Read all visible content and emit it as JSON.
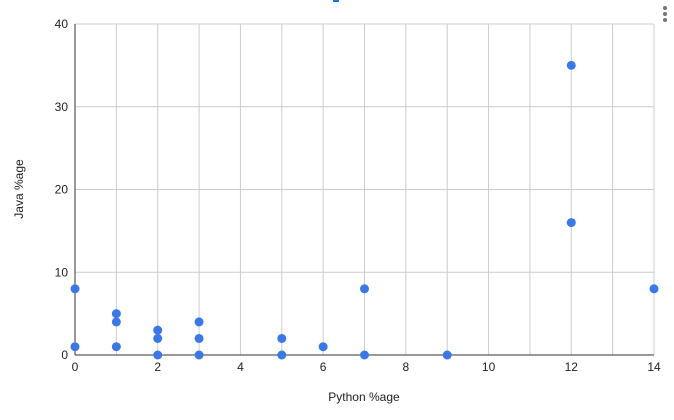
{
  "menu": {
    "icon": "more-vert-icon"
  },
  "chart_data": {
    "type": "scatter",
    "title": "",
    "xlabel": "Python %age",
    "ylabel": "Java %age",
    "xlim": [
      0,
      14
    ],
    "ylim": [
      0,
      40
    ],
    "x_ticks": [
      0,
      2,
      4,
      6,
      8,
      10,
      12,
      14
    ],
    "y_ticks": [
      0,
      10,
      20,
      30,
      40
    ],
    "x_tick_labels": [
      "0",
      "2",
      "4",
      "6",
      "8",
      "10",
      "12",
      "14"
    ],
    "y_tick_labels": [
      "0",
      "10",
      "20",
      "30",
      "40"
    ],
    "x_minor_gridlines": [
      1,
      3,
      5,
      7,
      9,
      11,
      13
    ],
    "grid": true,
    "legend": "none",
    "point_color": "#3b78e7",
    "series": [
      {
        "points": [
          {
            "x": 0,
            "y": 8
          },
          {
            "x": 0,
            "y": 1
          },
          {
            "x": 1,
            "y": 5
          },
          {
            "x": 1,
            "y": 4
          },
          {
            "x": 1,
            "y": 1
          },
          {
            "x": 2,
            "y": 3
          },
          {
            "x": 2,
            "y": 2
          },
          {
            "x": 2,
            "y": 0
          },
          {
            "x": 3,
            "y": 4
          },
          {
            "x": 3,
            "y": 2
          },
          {
            "x": 3,
            "y": 0
          },
          {
            "x": 5,
            "y": 2
          },
          {
            "x": 5,
            "y": 0
          },
          {
            "x": 6,
            "y": 1
          },
          {
            "x": 7,
            "y": 8
          },
          {
            "x": 7,
            "y": 0
          },
          {
            "x": 9,
            "y": 0
          },
          {
            "x": 12,
            "y": 35
          },
          {
            "x": 12,
            "y": 16
          },
          {
            "x": 14,
            "y": 8
          }
        ]
      }
    ]
  }
}
